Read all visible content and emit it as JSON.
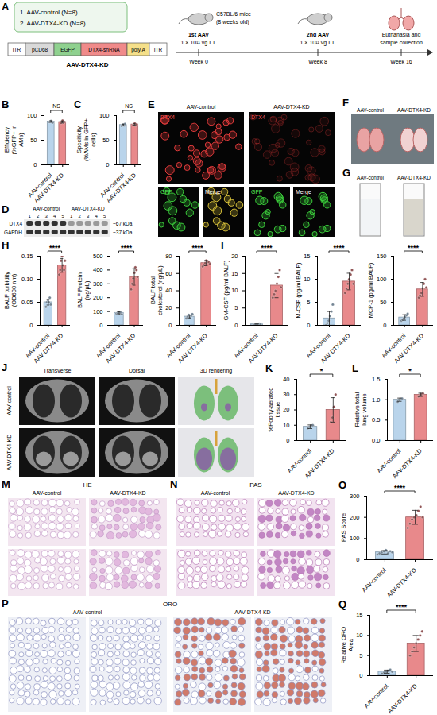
{
  "figure": {
    "A": {
      "panel": "A",
      "groups": [
        "1. AAV-control (N=8)",
        "2. AAV-DTX4-KD (N=8)"
      ],
      "construct": {
        "name": "AAV-DTX4-KD",
        "elements": [
          "ITR",
          "pCD68",
          "EGFP",
          "DTX4-shRNA",
          "poly A",
          "ITR"
        ]
      },
      "mice": [
        "C57BL/6 mice",
        "(8 weeks old)"
      ],
      "injections": [
        [
          "1st AAV",
          "1 × 10¹¹ vg I.T."
        ],
        [
          "2nd AAV",
          "1 × 10¹¹ vg I.T."
        ]
      ],
      "endpoint": [
        "Euthanasia and",
        "sample collection"
      ],
      "weeks": [
        "Week 0",
        "Week 8",
        "Week 16"
      ]
    },
    "D": {
      "panel": "D",
      "groups": [
        "AAV-control",
        "AAV-DTX4-KD"
      ],
      "lanes": [
        1,
        2,
        3,
        4,
        5
      ],
      "bands": [
        "DTX4",
        "GAPDH"
      ],
      "sizes": [
        "~67 kDa",
        "~37 kDa"
      ]
    },
    "E": {
      "panel": "E",
      "columns": [
        "AAV-control",
        "AAV-DTX4-KD"
      ],
      "channels": [
        "DTX4",
        "GFP",
        "Merge"
      ]
    },
    "F": {
      "panel": "F",
      "columns": [
        "AAV-control",
        "AAV-DTX4-KD"
      ]
    },
    "G": {
      "panel": "G",
      "columns": [
        "AAV-control",
        "AAV-DTX4-KD"
      ]
    },
    "J": {
      "panel": "J",
      "columns": [
        "Transverse",
        "Dorsal",
        "3D rendering"
      ],
      "rows": [
        "AAV-control",
        "AAV-DTX4-KD"
      ]
    },
    "M": {
      "panel": "M",
      "stain": "HE",
      "columns": [
        "AAV-control",
        "AAV-DTX4-KD"
      ]
    },
    "N": {
      "panel": "N",
      "stain": "PAS",
      "columns": [
        "AAV-control",
        "AAV-DTX4-KD"
      ]
    },
    "P": {
      "panel": "P",
      "stain": "ORO",
      "columns": [
        "AAV-control",
        "AAV-DTX4-KD"
      ]
    }
  },
  "chart_data": [
    {
      "panel": "B",
      "type": "bar",
      "ylabel": "Efficiency (%GFP+ in AMs)",
      "categories": [
        "AAV-control",
        "AAV-DTX4-KD"
      ],
      "values": [
        88,
        87
      ],
      "errors": [
        1.5,
        2
      ],
      "points": [
        [
          87,
          88,
          89,
          88,
          86
        ],
        [
          85,
          88,
          90,
          86,
          87
        ]
      ],
      "colors": [
        "#b9d4eb",
        "#e8898b"
      ],
      "ylim": [
        0,
        100
      ],
      "yticks": [
        0,
        50,
        100
      ],
      "annotation": "NS"
    },
    {
      "panel": "C",
      "type": "bar",
      "ylabel": "Specificity (%AMs in GFP+ cells)",
      "categories": [
        "AAV-control",
        "AAV-DTX4-KD"
      ],
      "values": [
        81,
        82
      ],
      "errors": [
        1.5,
        1.5
      ],
      "points": [
        [
          79,
          81,
          82,
          80,
          83
        ],
        [
          81,
          83,
          84,
          80,
          82
        ]
      ],
      "colors": [
        "#b9d4eb",
        "#e8898b"
      ],
      "ylim": [
        0,
        100
      ],
      "yticks": [
        0,
        50,
        100
      ],
      "annotation": "NS"
    },
    {
      "panel": "H",
      "type": "bar",
      "ylabel": "BALF turbidity (OD600 nm)",
      "categories": [
        "AAV-control",
        "AAV-DTX4-KD"
      ],
      "values": [
        0.05,
        0.13
      ],
      "errors": [
        0.006,
        0.015
      ],
      "points": [
        [
          0.04,
          0.05,
          0.055,
          0.05,
          0.06,
          0.045
        ],
        [
          0.11,
          0.12,
          0.14,
          0.15,
          0.13,
          0.12,
          0.14
        ]
      ],
      "colors": [
        "#b9d4eb",
        "#e8898b"
      ],
      "ylim": [
        0,
        0.15
      ],
      "yticks": [
        0,
        0.05,
        {
          "value": 0.1,
          "label": "0.10"
        },
        0.15
      ],
      "annotation": "****"
    },
    {
      "type": "bar",
      "ylabel": "BALF Protein (ng/μL)",
      "categories": [
        "AAV-control",
        "AAV-DTX4-KD"
      ],
      "values": [
        90,
        350
      ],
      "errors": [
        8,
        60
      ],
      "points": [
        [
          85,
          90,
          95,
          88,
          92,
          80
        ],
        [
          260,
          300,
          340,
          380,
          420,
          400,
          350
        ]
      ],
      "colors": [
        "#b9d4eb",
        "#e8898b"
      ],
      "ylim": [
        0,
        500
      ],
      "yticks": [
        0,
        100,
        200,
        300,
        400,
        500
      ],
      "annotation": "****"
    },
    {
      "type": "bar",
      "ylabel": "BALF total cholesterol (ng/μL)",
      "categories": [
        "AAV-control",
        "AAV-DTX4-KD"
      ],
      "values": [
        10,
        72
      ],
      "errors": [
        2,
        3
      ],
      "points": [
        [
          8,
          10,
          12,
          9,
          11,
          13
        ],
        [
          68,
          70,
          72,
          75,
          74,
          73,
          71
        ]
      ],
      "colors": [
        "#b9d4eb",
        "#e8898b"
      ],
      "ylim": [
        0,
        80
      ],
      "yticks": [
        0,
        20,
        40,
        60,
        80
      ],
      "annotation": "****"
    },
    {
      "panel": "I",
      "type": "bar",
      "ylabel": "GM-CSF (pg/ml BALF)",
      "categories": [
        "AAV-control",
        "AAV-DTX4-KD"
      ],
      "values": [
        0.3,
        11.5
      ],
      "errors": [
        0.2,
        3.5
      ],
      "points": [
        [
          0.1,
          0.2,
          0.3,
          0.4,
          0.5,
          0.3
        ],
        [
          8,
          9,
          10,
          12,
          14,
          16,
          11
        ]
      ],
      "colors": [
        "#b9d4eb",
        "#e8898b"
      ],
      "ylim": [
        0,
        20
      ],
      "yticks": [
        0,
        5,
        10,
        15,
        20
      ],
      "annotation": "****"
    },
    {
      "type": "bar",
      "ylabel": "M-CSF (pg/ml BALF)",
      "categories": [
        "AAV-control",
        "AAV-DTX4-KD"
      ],
      "values": [
        1.5,
        9.5
      ],
      "errors": [
        1.5,
        1.8
      ],
      "points": [
        [
          0,
          0.5,
          1,
          2,
          3,
          4.5
        ],
        [
          7,
          8,
          9,
          10,
          11,
          12,
          9
        ]
      ],
      "colors": [
        "#b9d4eb",
        "#e8898b"
      ],
      "ylim": [
        0,
        15
      ],
      "yticks": [
        0,
        5,
        10,
        15
      ],
      "annotation": "****"
    },
    {
      "type": "bar",
      "ylabel": "MCP-1 (pg/ml BALF)",
      "categories": [
        "AAV-control",
        "AAV-DTX4-KD"
      ],
      "values": [
        17,
        78
      ],
      "errors": [
        6,
        15
      ],
      "points": [
        [
          10,
          12,
          15,
          18,
          22,
          25
        ],
        [
          60,
          65,
          70,
          80,
          90,
          100,
          82
        ]
      ],
      "colors": [
        "#b9d4eb",
        "#e8898b"
      ],
      "ylim": [
        0,
        150
      ],
      "yticks": [
        0,
        50,
        100,
        150
      ],
      "annotation": "****"
    },
    {
      "panel": "K",
      "type": "bar",
      "ylabel": "%Poorly-aerated tissue",
      "categories": [
        "AAV-control",
        "AAV-DTX4-KD"
      ],
      "values": [
        9,
        20
      ],
      "errors": [
        1.2,
        8
      ],
      "points": [
        [
          8,
          9,
          9.5,
          10
        ],
        [
          12,
          15,
          22,
          30
        ]
      ],
      "colors": [
        "#b9d4eb",
        "#e8898b"
      ],
      "ylim": [
        0,
        40
      ],
      "yticks": [
        0,
        10,
        20,
        30,
        40
      ],
      "annotation": "*"
    },
    {
      "panel": "L",
      "type": "bar",
      "ylabel": "Relative total lung volume",
      "categories": [
        "AAV-control",
        "AAV-DTX4-KD"
      ],
      "values": [
        1.0,
        1.12
      ],
      "errors": [
        0.04,
        0.04
      ],
      "points": [
        [
          0.95,
          1.0,
          1.02,
          1.03
        ],
        [
          1.08,
          1.1,
          1.13,
          1.15
        ]
      ],
      "colors": [
        "#b9d4eb",
        "#e8898b"
      ],
      "ylim": [
        0,
        1.5
      ],
      "yticks": [
        {
          "value": 0,
          "label": "0.0"
        },
        0.5,
        {
          "value": 1,
          "label": "1.0"
        },
        1.5
      ],
      "annotation": "*"
    },
    {
      "panel": "O",
      "type": "bar",
      "ylabel": "PAS Score",
      "categories": [
        "AAV-control",
        "AAV-DTX4-KD"
      ],
      "values": [
        35,
        200
      ],
      "errors": [
        8,
        33
      ],
      "points": [
        [
          25,
          30,
          35,
          40,
          45,
          30,
          40,
          35
        ],
        [
          150,
          170,
          190,
          200,
          210,
          230,
          250,
          200
        ]
      ],
      "colors": [
        "#b9d4eb",
        "#e8898b"
      ],
      "ylim": [
        0,
        300
      ],
      "yticks": [
        0,
        100,
        200,
        300
      ],
      "annotation": "****"
    },
    {
      "panel": "Q",
      "type": "bar",
      "ylabel": "Relative ORO Area",
      "categories": [
        "AAV-control",
        "AAV-DTX4-KD"
      ],
      "values": [
        1,
        8
      ],
      "errors": [
        0.4,
        2
      ],
      "points": [
        [
          0.5,
          0.8,
          1,
          1.2,
          1.5,
          1.0
        ],
        [
          5,
          6,
          7,
          8,
          9,
          10,
          11
        ]
      ],
      "colors": [
        "#b9d4eb",
        "#e8898b"
      ],
      "ylim": [
        0,
        15
      ],
      "yticks": [
        0,
        5,
        10,
        15
      ],
      "annotation": "****"
    }
  ]
}
